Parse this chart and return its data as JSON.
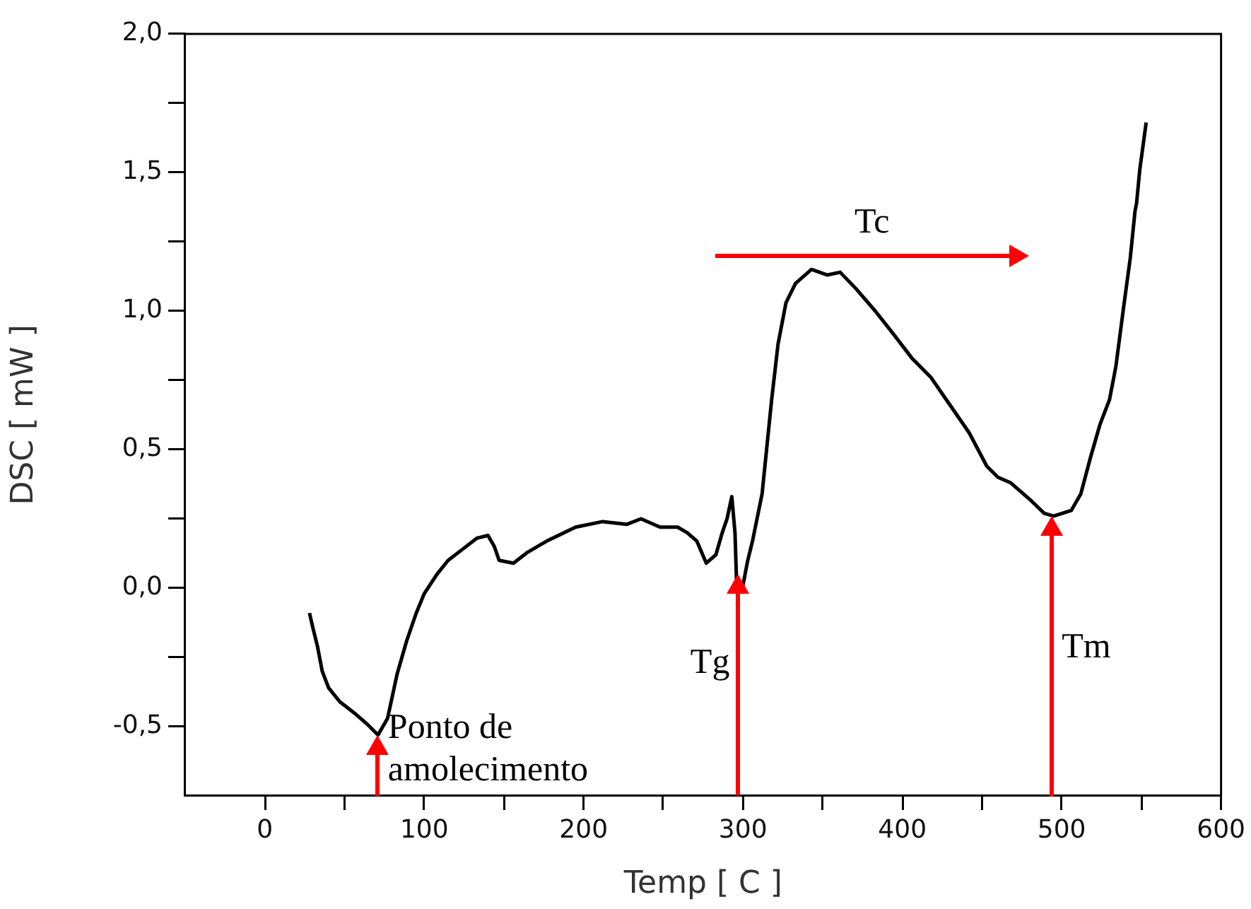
{
  "chart_data": {
    "type": "line",
    "xlabel": "Temp [ C ]",
    "ylabel": "DSC [ mW ]",
    "color": "#000000",
    "x": [
      28,
      30,
      33,
      36,
      40,
      47,
      56,
      64,
      71,
      77,
      83,
      89,
      95,
      100,
      108,
      115,
      124,
      133,
      140,
      144,
      147,
      156,
      165,
      177,
      195,
      212,
      227,
      236,
      248,
      259,
      265,
      271,
      277,
      283,
      287,
      290,
      293,
      295,
      296,
      300,
      303,
      306,
      312,
      318,
      322,
      327,
      333,
      343,
      353,
      361,
      371,
      383,
      394,
      406,
      418,
      430,
      442,
      453,
      460,
      468,
      480,
      489,
      495,
      506,
      512,
      518,
      524,
      530,
      534,
      539,
      543,
      546,
      547,
      549,
      553
    ],
    "values": [
      -0.09,
      -0.14,
      -0.21,
      -0.3,
      -0.36,
      -0.41,
      -0.45,
      -0.49,
      -0.53,
      -0.47,
      -0.31,
      -0.19,
      -0.09,
      -0.02,
      0.05,
      0.1,
      0.14,
      0.18,
      0.19,
      0.15,
      0.1,
      0.09,
      0.13,
      0.17,
      0.22,
      0.24,
      0.23,
      0.25,
      0.22,
      0.22,
      0.2,
      0.17,
      0.09,
      0.12,
      0.2,
      0.25,
      0.33,
      0.2,
      0.02,
      0.01,
      0.1,
      0.17,
      0.34,
      0.68,
      0.88,
      1.03,
      1.1,
      1.15,
      1.13,
      1.14,
      1.08,
      1.0,
      0.92,
      0.83,
      0.76,
      0.66,
      0.56,
      0.44,
      0.4,
      0.38,
      0.32,
      0.27,
      0.26,
      0.28,
      0.34,
      0.47,
      0.59,
      0.68,
      0.8,
      1.02,
      1.19,
      1.36,
      1.39,
      1.51,
      1.68
    ],
    "xlim": [
      -50,
      600
    ],
    "ylim": [
      -0.75,
      2.0
    ],
    "xticks": [
      0,
      {
        "value": 50,
        "label": null
      },
      100,
      {
        "value": 150,
        "label": null
      },
      200,
      {
        "value": 250,
        "label": null
      },
      300,
      {
        "value": 350,
        "label": null
      },
      400,
      {
        "value": 450,
        "label": null
      },
      500,
      {
        "value": 550,
        "label": null
      },
      600
    ],
    "yticks": [
      {
        "value": -0.5,
        "label": "-0,5"
      },
      {
        "value": -0.25,
        "label": null
      },
      {
        "value": 0,
        "label": "0,0"
      },
      {
        "value": 0.25,
        "label": null
      },
      {
        "value": 0.5,
        "label": "0,5"
      },
      {
        "value": 0.75,
        "label": null
      },
      {
        "value": 1,
        "label": "1,0"
      },
      {
        "value": 1.25,
        "label": null
      },
      {
        "value": 1.5,
        "label": "1,5"
      },
      {
        "value": 1.75,
        "label": null
      },
      {
        "value": 2,
        "label": "2,0"
      }
    ],
    "annotations": [
      {
        "text": "Ponto de amolecimento",
        "x": 71,
        "y": -0.53
      },
      {
        "text": "Tg",
        "x": 297,
        "y": 0.05
      },
      "Tc",
      "Tm"
    ]
  }
}
